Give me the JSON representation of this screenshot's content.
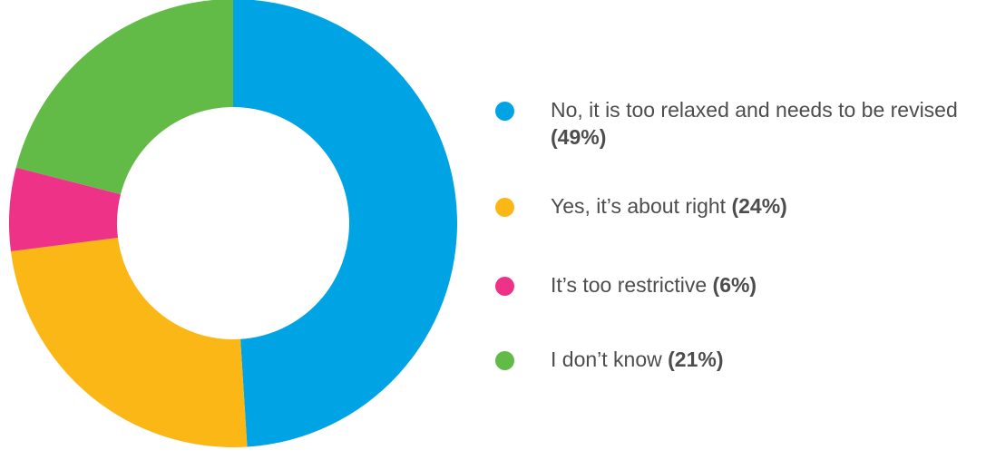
{
  "chart_data": {
    "type": "pie",
    "donut": true,
    "title": "",
    "slices": [
      {
        "label": "No, it is too relaxed and needs to be revised",
        "value": 49,
        "pct_text": "(49%)",
        "color": "#00a3e4"
      },
      {
        "label": "Yes, it’s about right",
        "value": 24,
        "pct_text": "(24%)",
        "color": "#fbb716"
      },
      {
        "label": "It’s too restrictive",
        "value": 6,
        "pct_text": "(6%)",
        "color": "#ed3287"
      },
      {
        "label": "I don’t know",
        "value": 21,
        "pct_text": "(21%)",
        "color": "#62bb47"
      }
    ],
    "legend_position": "right"
  }
}
